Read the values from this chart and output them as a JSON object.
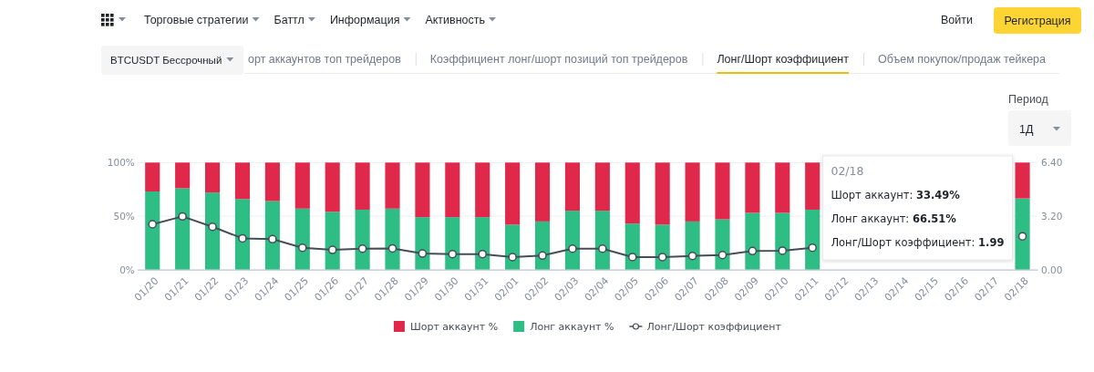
{
  "chart_data": {
    "type": "bar",
    "title": "Лонг/Шорт коэффициент",
    "categories": [
      "01/20",
      "01/21",
      "01/22",
      "01/23",
      "01/24",
      "01/25",
      "01/26",
      "01/27",
      "01/28",
      "01/29",
      "01/30",
      "01/31",
      "02/01",
      "02/02",
      "02/03",
      "02/04",
      "02/05",
      "02/06",
      "02/07",
      "02/08",
      "02/09",
      "02/10",
      "02/11",
      "02/12",
      "02/13",
      "02/14",
      "02/15",
      "02/16",
      "02/17",
      "02/18"
    ],
    "stacked": true,
    "series": [
      {
        "name": "Лонг аккаунт %",
        "color": "#2ebd85",
        "values": [
          73,
          76,
          72,
          66,
          64,
          57,
          54,
          56,
          57,
          49,
          49,
          49,
          42,
          45,
          55,
          55,
          43,
          42,
          45,
          47,
          53,
          53,
          56,
          null,
          null,
          null,
          null,
          null,
          null,
          66.51
        ]
      },
      {
        "name": "Шорт аккаунт %",
        "color": "#e0294a",
        "values": [
          27,
          24,
          28,
          34,
          36,
          43,
          46,
          44,
          43,
          51,
          51,
          51,
          58,
          55,
          45,
          45,
          57,
          58,
          55,
          53,
          47,
          47,
          44,
          null,
          null,
          null,
          null,
          null,
          null,
          33.49
        ]
      },
      {
        "name": "Лонг/Шорт коэффициент",
        "type": "line",
        "axis": "y2",
        "color": "#474d57",
        "values": [
          2.71,
          3.18,
          2.56,
          1.87,
          1.82,
          1.31,
          1.18,
          1.25,
          1.27,
          0.96,
          0.93,
          0.93,
          0.75,
          0.84,
          1.25,
          1.25,
          0.75,
          0.75,
          0.82,
          0.87,
          1.11,
          1.13,
          1.31,
          null,
          null,
          null,
          null,
          null,
          null,
          1.99
        ]
      }
    ],
    "ylim": [
      0,
      100
    ],
    "yticks": [
      {
        "value": 0,
        "label": "0%"
      },
      {
        "value": 50,
        "label": "50%"
      },
      {
        "value": 100,
        "label": "100%"
      }
    ],
    "y2lim": [
      0,
      6.4
    ],
    "y2ticks": [
      {
        "value": 0,
        "label": "0.00"
      },
      {
        "value": 3.2,
        "label": "3.20"
      },
      {
        "value": 6.4,
        "label": "6.40"
      }
    ],
    "grid": "y",
    "legend": "bottom",
    "marker": "circle",
    "annotations": [
      "Торговые стратегии",
      "Баттл",
      "Информация",
      "Активность",
      "Войти",
      "Регистрация",
      "BTCUSDT Бессрочный",
      "орт аккаунтов топ трейдеров",
      "Коэффициент лонг/шорт позиций топ трейдеров",
      "Объем покупок/продаж тейкера",
      "Период",
      "1Д",
      "02/18",
      "Шорт аккаунт: 33.49%",
      "Лонг аккаунт: 66.51%",
      "Лонг/Шорт коэффициент: 1.99"
    ]
  }
}
